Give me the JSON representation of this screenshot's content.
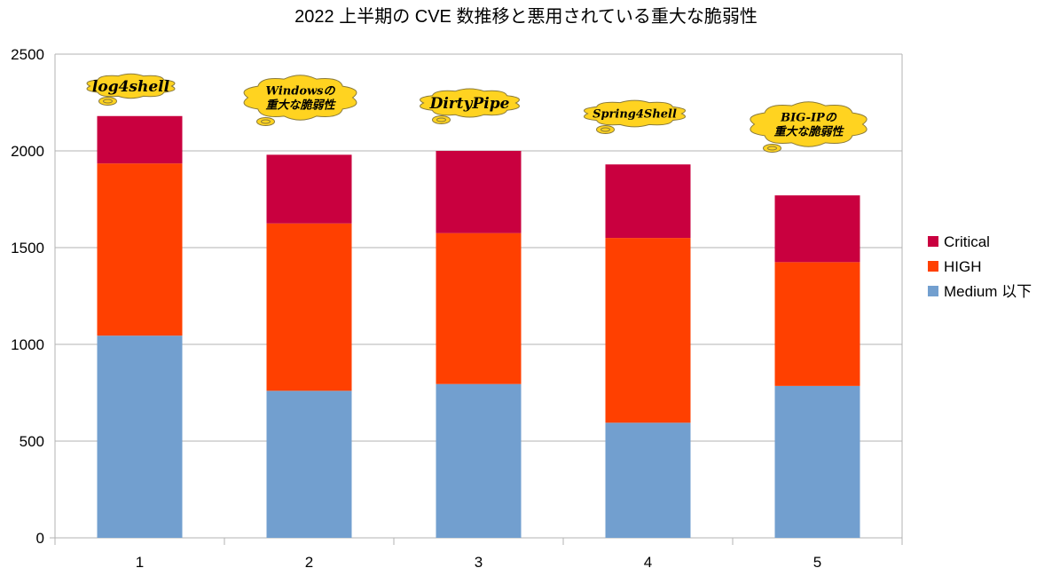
{
  "chart_data": {
    "type": "bar",
    "stacked": true,
    "title": "2022 上半期の CVE 数推移と悪用されている重大な脆弱性",
    "xlabel": "",
    "ylabel": "",
    "categories": [
      "1",
      "2",
      "3",
      "4",
      "5"
    ],
    "ylim": [
      0,
      2500
    ],
    "yticks": [
      0,
      500,
      1000,
      1500,
      2000,
      2500
    ],
    "grid": true,
    "legend": "right",
    "series": [
      {
        "name": "Medium 以下",
        "color": "#729fcf",
        "values": [
          1045,
          760,
          795,
          595,
          785
        ]
      },
      {
        "name": "HIGH",
        "color": "#ff4000",
        "values": [
          890,
          865,
          780,
          955,
          640
        ]
      },
      {
        "name": "Critical",
        "color": "#c9003f",
        "values": [
          245,
          355,
          425,
          380,
          345
        ]
      }
    ],
    "legend_order": [
      "Critical",
      "HIGH",
      "Medium 以下"
    ],
    "annotations": [
      {
        "category": "1",
        "lines": [
          "log4shell"
        ]
      },
      {
        "category": "2",
        "lines": [
          "Windowsの",
          "重大な脆弱性"
        ]
      },
      {
        "category": "3",
        "lines": [
          "DirtyPipe"
        ]
      },
      {
        "category": "4",
        "lines": [
          "Spring4Shell"
        ]
      },
      {
        "category": "5",
        "lines": [
          "BIG-IPの",
          "重大な脆弱性"
        ]
      }
    ],
    "annotation_color": "#ffd320"
  }
}
